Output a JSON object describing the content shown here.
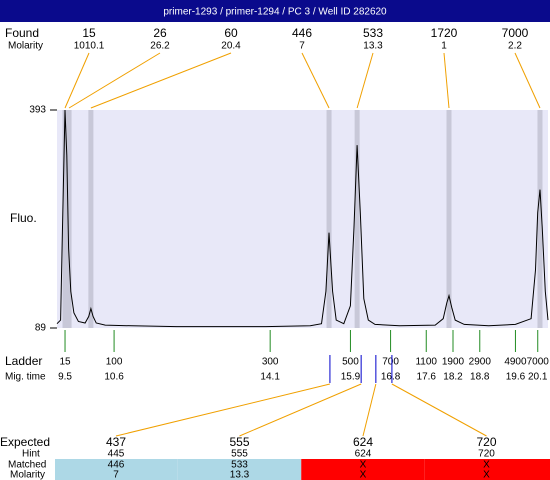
{
  "header": {
    "title": "primer-1293 / primer-1294 / PC 3 / Well ID 282620"
  },
  "labels": {
    "found": "Found",
    "molarity": "Molarity",
    "fluo": "Fluo.",
    "ladder": "Ladder",
    "mig_time": "Mig. time",
    "expected": "Expected",
    "hint": "Hint",
    "matched": "Matched",
    "molarity_row": "Molarity"
  },
  "chart_data": {
    "type": "line",
    "color": "#000000",
    "x": [
      9.32,
      9.4,
      9.45,
      9.5,
      9.54,
      9.58,
      9.63,
      9.7,
      9.8,
      9.95,
      10.03,
      10.08,
      10.13,
      10.2,
      10.4,
      11,
      12,
      13,
      14,
      15,
      15.25,
      15.35,
      15.42,
      15.5,
      15.58,
      15.75,
      15.9,
      15.98,
      16.05,
      16.12,
      16.2,
      16.3,
      16.45,
      17,
      17.8,
      17.98,
      18.06,
      18.11,
      18.17,
      18.25,
      18.45,
      19,
      19.6,
      19.95,
      20.05,
      20.1,
      20.15,
      20.2,
      20.27,
      20.33
    ],
    "values": [
      95,
      100,
      250,
      393,
      330,
      200,
      140,
      110,
      98,
      96,
      105,
      116,
      105,
      96,
      93,
      92,
      91,
      91,
      91,
      92,
      95,
      140,
      222,
      140,
      100,
      95,
      120,
      230,
      344,
      250,
      130,
      100,
      94,
      92,
      93,
      102,
      124,
      134,
      118,
      100,
      94,
      92,
      94,
      102,
      170,
      250,
      282,
      230,
      140,
      100
    ],
    "xlim": [
      9.32,
      20.33
    ],
    "ylim": [
      89,
      393
    ],
    "yticks": [
      89,
      393
    ],
    "found_peaks": {
      "sizes": [
        15,
        26,
        60,
        446,
        533,
        1720,
        7000
      ],
      "molarity": [
        1010.1,
        26.2,
        20.4,
        7,
        13.3,
        1,
        2.2
      ],
      "times": [
        9.5,
        9.59,
        10.08,
        15.42,
        16.05,
        18.11,
        20.15
      ]
    },
    "ladder": {
      "sizes": [
        15,
        100,
        300,
        500,
        700,
        1100,
        1900,
        2900,
        4900,
        7000
      ],
      "times": [
        9.5,
        10.6,
        14.1,
        15.9,
        16.8,
        17.6,
        18.2,
        18.8,
        19.6,
        20.1
      ]
    },
    "expected": {
      "sizes": [
        437,
        555,
        624,
        720
      ],
      "times": [
        15.44,
        16.14,
        16.47,
        16.83
      ],
      "hint": [
        445,
        555,
        624,
        720
      ],
      "matched": [
        446,
        533,
        "X",
        "X"
      ],
      "molarity": [
        7,
        13.3,
        "X",
        "X"
      ],
      "matched_colors": [
        "#add8e6",
        "#add8e6",
        "#ff0000",
        "#ff0000"
      ]
    }
  }
}
